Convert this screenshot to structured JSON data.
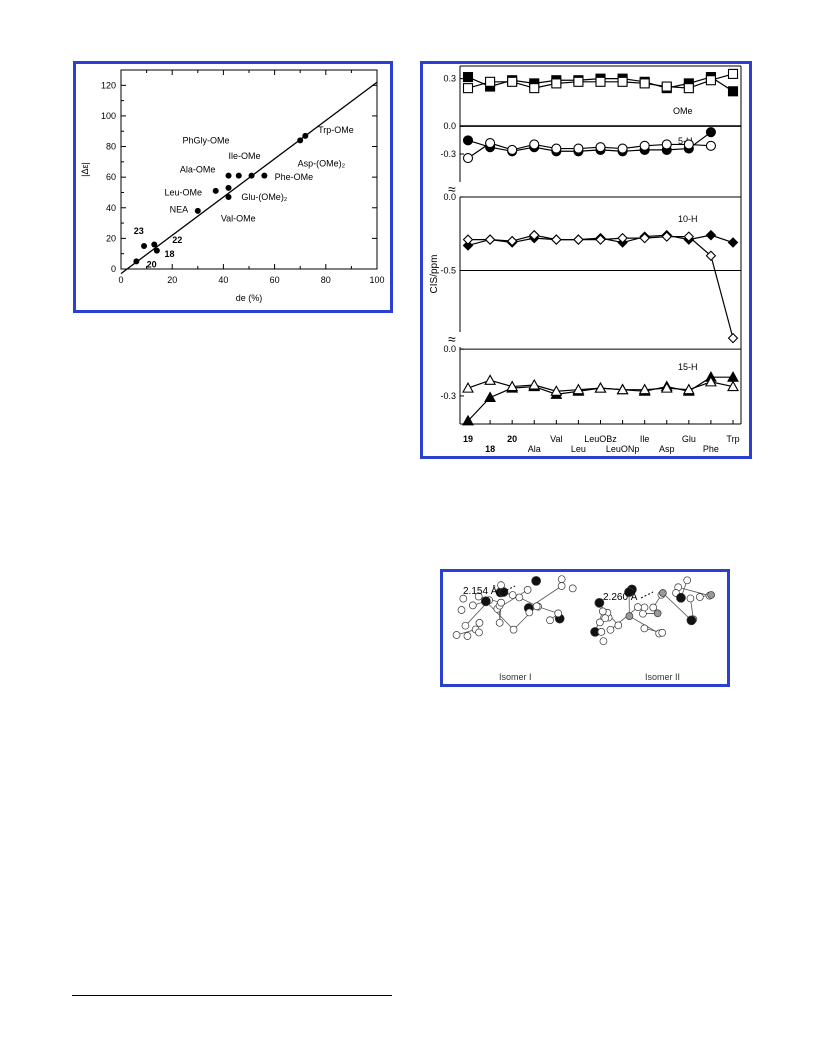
{
  "figure1": {
    "type": "scatter",
    "xlabel": "de (%)",
    "ylabel": "|Δε|",
    "xlim": [
      0,
      100
    ],
    "ylim": [
      0,
      130
    ],
    "xticks": [
      "0",
      "20",
      "40",
      "60",
      "80",
      "100"
    ],
    "yticks": [
      "0",
      "20",
      "40",
      "60",
      "80",
      "100",
      "120"
    ],
    "points": [
      {
        "x": 6,
        "y": 5
      },
      {
        "x": 9,
        "y": 15
      },
      {
        "x": 13,
        "y": 16
      },
      {
        "x": 14,
        "y": 12
      },
      {
        "x": 30,
        "y": 38
      },
      {
        "x": 37,
        "y": 51
      },
      {
        "x": 42,
        "y": 47
      },
      {
        "x": 42,
        "y": 53
      },
      {
        "x": 42,
        "y": 61
      },
      {
        "x": 46,
        "y": 61
      },
      {
        "x": 51,
        "y": 61
      },
      {
        "x": 56,
        "y": 61
      },
      {
        "x": 70,
        "y": 84
      },
      {
        "x": 72,
        "y": 87
      }
    ],
    "fit_line": {
      "x": [
        0,
        100
      ],
      "y": [
        -3,
        122
      ]
    },
    "labels": [
      {
        "text": "Trp-OMe",
        "x": 77,
        "y": 89,
        "bold": false
      },
      {
        "text": "PhGly-OMe",
        "x": 24,
        "y": 82,
        "bold": false
      },
      {
        "text": "Ile-OMe",
        "x": 42,
        "y": 72,
        "bold": false
      },
      {
        "text": "Asp-(OMe)₂",
        "x": 69,
        "y": 67,
        "bold": false
      },
      {
        "text": "Ala-OMe",
        "x": 23,
        "y": 63,
        "bold": false
      },
      {
        "text": "Phe-OMe",
        "x": 60,
        "y": 58,
        "bold": false
      },
      {
        "text": "Leu-OMe",
        "x": 17,
        "y": 48,
        "bold": false
      },
      {
        "text": "Glu-(OMe)₂",
        "x": 47,
        "y": 45,
        "bold": false
      },
      {
        "text": "NEA",
        "x": 19,
        "y": 37,
        "bold": false
      },
      {
        "text": "Val-OMe",
        "x": 39,
        "y": 31,
        "bold": false
      },
      {
        "text": "23",
        "x": 5,
        "y": 23,
        "bold": true
      },
      {
        "text": "22",
        "x": 20,
        "y": 17,
        "bold": true
      },
      {
        "text": "18",
        "x": 17,
        "y": 8,
        "bold": true
      },
      {
        "text": "20",
        "x": 10,
        "y": 1,
        "bold": true
      }
    ]
  },
  "figure2": {
    "type": "line",
    "ylabel": "CIS/ppm",
    "break_symbol": "≈",
    "categories_top": [
      "19",
      "",
      "20",
      "",
      "Val",
      "",
      "LeuOBz",
      "",
      "Ile",
      "",
      "Glu",
      "",
      "Trp"
    ],
    "categories_bottom": [
      "",
      "18",
      "",
      "Ala",
      "",
      "Leu",
      "",
      "LeuONp",
      "",
      "Asp",
      "",
      "Phe",
      ""
    ],
    "bold_categories": [
      "19",
      "18",
      "20"
    ],
    "panels": [
      {
        "label": "OMe",
        "yticks": [
          {
            "v": 0.3,
            "t": "0.3"
          },
          {
            "v": 0.0,
            "t": "0.0"
          }
        ],
        "ylim": [
          -0.05,
          0.38
        ],
        "series": [
          {
            "marker": "square",
            "filled": true,
            "values": [
              0.31,
              0.25,
              0.29,
              0.27,
              0.29,
              0.29,
              0.3,
              0.3,
              0.28,
              0.24,
              0.27,
              0.31,
              0.22
            ]
          },
          {
            "marker": "square",
            "filled": false,
            "values": [
              0.24,
              0.28,
              0.28,
              0.24,
              0.27,
              0.28,
              0.28,
              0.28,
              0.27,
              0.25,
              0.24,
              0.29,
              0.33
            ]
          }
        ]
      },
      {
        "label": "5-H",
        "yticks": [
          {
            "v": -0.3,
            "t": "-0.3"
          }
        ],
        "ylim": [
          -0.52,
          -0.08
        ],
        "series": [
          {
            "marker": "circle",
            "filled": true,
            "values": [
              -0.2,
              -0.25,
              -0.28,
              -0.25,
              -0.28,
              -0.28,
              -0.27,
              -0.28,
              -0.27,
              -0.27,
              -0.26,
              -0.14,
              null
            ]
          },
          {
            "marker": "circle",
            "filled": false,
            "values": [
              -0.33,
              -0.22,
              -0.27,
              -0.23,
              -0.26,
              -0.26,
              -0.25,
              -0.26,
              -0.24,
              -0.23,
              -0.23,
              -0.24,
              null
            ]
          }
        ]
      },
      {
        "label": "10-H",
        "yticks": [
          {
            "v": 0.0,
            "t": "0.0"
          },
          {
            "v": -0.5,
            "t": "-0.5"
          }
        ],
        "ylim": [
          -1.0,
          0.02
        ],
        "series": [
          {
            "marker": "diamond",
            "filled": true,
            "values": [
              -0.33,
              -0.29,
              -0.31,
              -0.28,
              -0.29,
              -0.29,
              -0.28,
              -0.31,
              -0.27,
              -0.26,
              -0.29,
              -0.26,
              -0.31
            ]
          },
          {
            "marker": "diamond",
            "filled": false,
            "values": [
              -0.29,
              -0.29,
              -0.3,
              -0.26,
              -0.29,
              -0.29,
              -0.29,
              -0.28,
              -0.28,
              -0.27,
              -0.27,
              -0.4,
              -0.96
            ]
          }
        ]
      },
      {
        "label": "15-H",
        "yticks": [
          {
            "v": 0.0,
            "t": "0.0"
          },
          {
            "v": -0.3,
            "t": "-0.3"
          }
        ],
        "ylim": [
          -0.48,
          0.02
        ],
        "series": [
          {
            "marker": "triangle",
            "filled": true,
            "values": [
              -0.46,
              -0.31,
              -0.25,
              -0.24,
              -0.29,
              -0.27,
              -0.25,
              -0.26,
              -0.27,
              -0.24,
              -0.27,
              -0.18,
              -0.18
            ]
          },
          {
            "marker": "triangle",
            "filled": false,
            "values": [
              -0.25,
              -0.2,
              -0.24,
              -0.23,
              -0.27,
              -0.26,
              -0.25,
              -0.26,
              -0.26,
              -0.25,
              -0.26,
              -0.21,
              -0.24
            ]
          }
        ]
      }
    ]
  },
  "figure3": {
    "isomers": [
      {
        "name": "Isomer I",
        "distance": "2.154 Å"
      },
      {
        "name": "Isomer II",
        "distance": "2.260 Å"
      }
    ]
  }
}
